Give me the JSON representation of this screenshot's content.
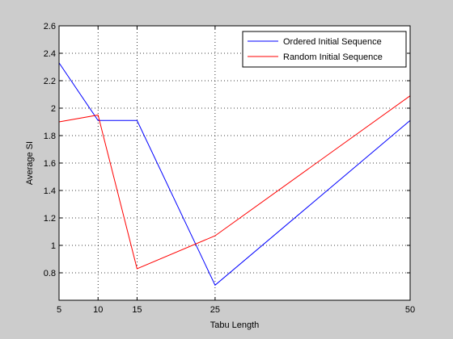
{
  "chart_data": {
    "type": "line",
    "title": "",
    "xlabel": "Tabu Length",
    "ylabel": "Average SI",
    "xlim": [
      5,
      50
    ],
    "ylim": [
      0.6,
      2.6
    ],
    "xticks": [
      5,
      10,
      15,
      25,
      50
    ],
    "yticks": [
      0.8,
      1,
      1.2,
      1.4,
      1.6,
      1.8,
      2,
      2.2,
      2.4,
      2.6
    ],
    "ytick_labels": [
      "0.8",
      "1",
      "1.2",
      "1.4",
      "1.6",
      "1.8",
      "2",
      "2.2",
      "2.4",
      "2.6"
    ],
    "grid": true,
    "legend_position": "top-right",
    "series": [
      {
        "name": "Ordered Initial Sequence",
        "color": "#0000ff",
        "x": [
          5,
          10,
          15,
          25,
          50
        ],
        "y": [
          2.33,
          1.91,
          1.91,
          0.71,
          1.91
        ]
      },
      {
        "name": "Random Initial Sequence",
        "color": "#ff0000",
        "x": [
          5,
          10,
          15,
          25,
          50
        ],
        "y": [
          1.9,
          1.95,
          0.83,
          1.07,
          2.09
        ]
      }
    ]
  }
}
